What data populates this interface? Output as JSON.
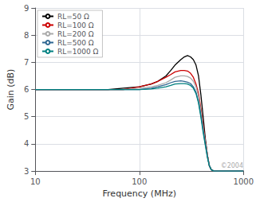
{
  "chart_data": {
    "type": "line",
    "xlabel": "Frequency (MHz)",
    "ylabel": "Gain (dB)",
    "log": "x",
    "xlim": [
      10,
      1000
    ],
    "xticks": [
      10,
      100,
      1000
    ],
    "ylim": [
      3,
      9
    ],
    "yticks": [
      3,
      4,
      5,
      6,
      7,
      8,
      9
    ],
    "grid": true,
    "legend": "upper left",
    "annotations": [
      "©2004"
    ],
    "x": [
      10,
      15,
      20,
      30,
      40,
      50,
      70,
      100,
      130,
      150,
      180,
      200,
      220,
      250,
      270,
      290,
      310,
      330,
      350,
      370,
      390,
      410,
      430,
      450,
      470,
      490,
      520,
      560,
      600,
      700,
      1000
    ],
    "series": [
      {
        "name": "RL=50 Ω",
        "color": "#000000",
        "values": [
          6.0,
          6.0,
          6.0,
          6.0,
          6.0,
          6.0,
          6.05,
          6.1,
          6.2,
          6.3,
          6.5,
          6.7,
          6.9,
          7.1,
          7.2,
          7.25,
          7.2,
          7.1,
          6.9,
          6.5,
          5.8,
          5.0,
          4.2,
          3.6,
          3.2,
          3.05,
          3.0,
          3.0,
          3.0,
          3.0,
          3.0
        ]
      },
      {
        "name": "RL=100 Ω",
        "color": "#cc0000",
        "values": [
          6.0,
          6.0,
          6.0,
          6.0,
          6.0,
          6.0,
          6.0,
          6.1,
          6.2,
          6.3,
          6.45,
          6.55,
          6.65,
          6.7,
          6.7,
          6.68,
          6.6,
          6.45,
          6.2,
          5.85,
          5.3,
          4.7,
          4.1,
          3.6,
          3.2,
          3.05,
          3.0,
          3.0,
          3.0,
          3.0,
          3.0
        ]
      },
      {
        "name": "RL=200 Ω",
        "color": "#aaaaaa",
        "values": [
          6.0,
          6.0,
          6.0,
          6.0,
          6.0,
          6.0,
          6.0,
          6.05,
          6.1,
          6.15,
          6.25,
          6.35,
          6.45,
          6.5,
          6.5,
          6.48,
          6.42,
          6.3,
          6.1,
          5.75,
          5.2,
          4.6,
          4.05,
          3.6,
          3.2,
          3.05,
          3.0,
          3.0,
          3.0,
          3.0,
          3.0
        ]
      },
      {
        "name": "RL=500 Ω",
        "color": "#2f6691",
        "values": [
          6.0,
          6.0,
          6.0,
          6.0,
          6.0,
          6.0,
          6.0,
          6.0,
          6.05,
          6.1,
          6.18,
          6.25,
          6.3,
          6.32,
          6.3,
          6.27,
          6.22,
          6.1,
          5.9,
          5.55,
          5.05,
          4.5,
          4.0,
          3.55,
          3.2,
          3.05,
          3.0,
          3.0,
          3.0,
          3.0,
          3.0
        ]
      },
      {
        "name": "RL=1000 Ω",
        "color": "#008080",
        "values": [
          6.0,
          6.0,
          6.0,
          6.0,
          6.0,
          6.0,
          6.0,
          6.0,
          6.02,
          6.05,
          6.1,
          6.15,
          6.2,
          6.22,
          6.22,
          6.2,
          6.15,
          6.05,
          5.85,
          5.5,
          4.98,
          4.42,
          3.95,
          3.5,
          3.2,
          3.05,
          3.0,
          3.0,
          3.0,
          3.0,
          3.0
        ]
      }
    ]
  }
}
